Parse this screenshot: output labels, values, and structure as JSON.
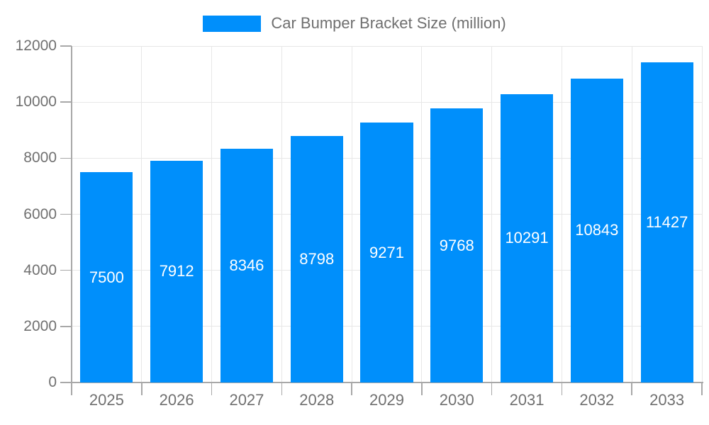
{
  "legend": {
    "label": "Car Bumper Bracket Size (million)"
  },
  "chart_data": {
    "type": "bar",
    "title": "Car Bumper Bracket Size (million)",
    "categories": [
      "2025",
      "2026",
      "2027",
      "2028",
      "2029",
      "2030",
      "2031",
      "2032",
      "2033"
    ],
    "values": [
      7500,
      7912,
      8346,
      8798,
      9271,
      9768,
      10291,
      10843,
      11427
    ],
    "bar_labels": [
      "7500",
      "7912",
      "8346",
      "8798",
      "9271",
      "9768",
      "10291",
      "10843",
      "11427"
    ],
    "xlabel": "",
    "ylabel": "",
    "ylim": [
      0,
      12000
    ],
    "yticks": [
      0,
      2000,
      4000,
      6000,
      8000,
      10000,
      12000
    ],
    "grid": true,
    "legend_position": "top",
    "colors": {
      "bar": "#008ffb",
      "bar_label": "#ffffff",
      "axis": "#a8a8a8",
      "grid": "#e7e7e7",
      "text": "#707070",
      "background": "#ffffff"
    }
  }
}
